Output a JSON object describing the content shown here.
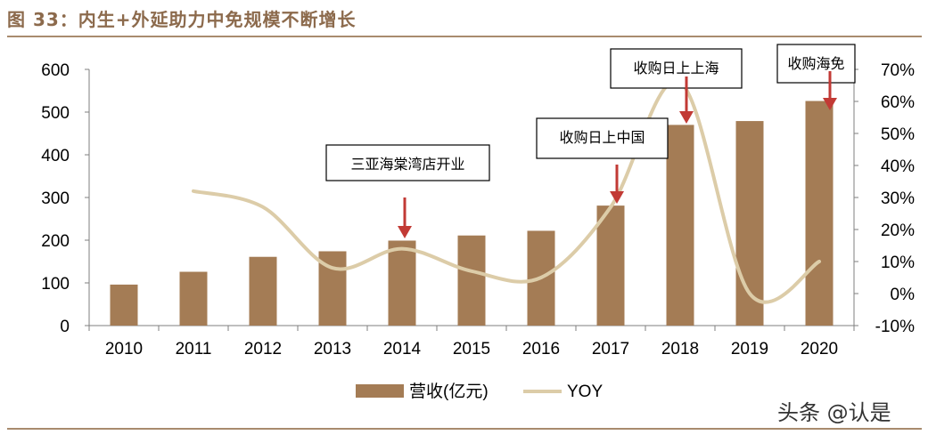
{
  "title": "图 33：内生+外延助力中免规模不断增长",
  "watermark": "头条 @认是",
  "colors": {
    "bar": "#a47c55",
    "line": "#dccca8",
    "title": "#8c6a4c",
    "arrow": "#c23a35",
    "rule": "#a88b6e"
  },
  "chart_data": {
    "type": "bar",
    "categories": [
      "2010",
      "2011",
      "2012",
      "2013",
      "2014",
      "2015",
      "2016",
      "2017",
      "2018",
      "2019",
      "2020"
    ],
    "series": [
      {
        "name": "营收(亿元)",
        "type": "bar",
        "axis": "left",
        "values": [
          96,
          126,
          161,
          174,
          199,
          211,
          222,
          281,
          470,
          479,
          526
        ]
      },
      {
        "name": "YOY",
        "type": "line",
        "axis": "right",
        "values": [
          null,
          32,
          27,
          8,
          14,
          7,
          5,
          27,
          66,
          0,
          10
        ]
      }
    ],
    "y_left": {
      "min": 0,
      "max": 600,
      "ticks": [
        0,
        100,
        200,
        300,
        400,
        500,
        600
      ]
    },
    "y_right": {
      "min": -10,
      "max": 70,
      "ticks": [
        -10,
        0,
        10,
        20,
        30,
        40,
        50,
        60,
        70
      ],
      "tick_labels": [
        "-10%",
        "0%",
        "10%",
        "20%",
        "30%",
        "40%",
        "50%",
        "60%",
        "70%"
      ]
    },
    "annotations": [
      {
        "text": "三亚海棠湾店开业",
        "category": "2014"
      },
      {
        "text": "收购日上中国",
        "category": "2017"
      },
      {
        "text": "收购日上上海",
        "category": "2018"
      },
      {
        "text": "收购海免",
        "category": "2020"
      }
    ],
    "legend_position": "bottom",
    "grid": false
  }
}
